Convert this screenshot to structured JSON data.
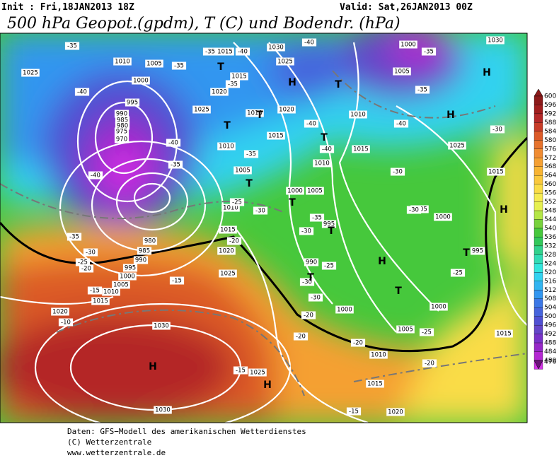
{
  "header": {
    "init": "Init : Fri,18JAN2013 18Z",
    "valid": "Valid: Sat,26JAN2013 00Z",
    "title": "500 hPa Geopot.(gpdm), T (C) und Bodendr. (hPa)"
  },
  "footer": {
    "line1": "Daten: GFS−Modell des amerikanischen Wetterdienstes",
    "line2": "(C) Wetterzentrale",
    "line3": "www.wetterzentrale.de"
  },
  "colorbar": [
    {
      "value": 600,
      "color": "#8b1a1a"
    },
    {
      "value": 596,
      "color": "#a01e1e"
    },
    {
      "value": 592,
      "color": "#b42828"
    },
    {
      "value": 588,
      "color": "#c83c28"
    },
    {
      "value": 584,
      "color": "#dc5a28"
    },
    {
      "value": 580,
      "color": "#e6732d"
    },
    {
      "value": 576,
      "color": "#f08c32"
    },
    {
      "value": 572,
      "color": "#f5a032"
    },
    {
      "value": 568,
      "color": "#f8b432"
    },
    {
      "value": 564,
      "color": "#fac83c"
    },
    {
      "value": 560,
      "color": "#fadc46"
    },
    {
      "value": 556,
      "color": "#f5eb50"
    },
    {
      "value": 552,
      "color": "#e6f050"
    },
    {
      "value": 548,
      "color": "#b4e646"
    },
    {
      "value": 544,
      "color": "#78d23c"
    },
    {
      "value": 540,
      "color": "#46c83c"
    },
    {
      "value": 536,
      "color": "#32c85a"
    },
    {
      "value": 532,
      "color": "#32d28c"
    },
    {
      "value": 528,
      "color": "#32dcb4"
    },
    {
      "value": 524,
      "color": "#32e6dc"
    },
    {
      "value": 520,
      "color": "#32d2f0"
    },
    {
      "value": 516,
      "color": "#32b4f0"
    },
    {
      "value": 512,
      "color": "#3296f0"
    },
    {
      "value": 508,
      "color": "#3c78e6"
    },
    {
      "value": 504,
      "color": "#4664dc"
    },
    {
      "value": 500,
      "color": "#5050d2"
    },
    {
      "value": 496,
      "color": "#6446c8"
    },
    {
      "value": 492,
      "color": "#7832c8"
    },
    {
      "value": 488,
      "color": "#9628c8"
    },
    {
      "value": 484,
      "color": "#b428d2"
    },
    {
      "value": 480,
      "color": "#d232e6"
    },
    {
      "value": 476,
      "color": "#6a1478"
    }
  ],
  "map_labels": {
    "isobars": [
      "1030",
      "1015",
      "1010",
      "1005",
      "1025",
      "1000",
      "995",
      "990",
      "985",
      "980",
      "975",
      "970",
      "1025",
      "1020",
      "1015",
      "1010",
      "1020",
      "1015",
      "1010",
      "1010",
      "1015",
      "1005",
      "1000",
      "1005",
      "1010",
      "1015",
      "1020",
      "1025",
      "995",
      "990",
      "1000",
      "980",
      "985",
      "990",
      "995",
      "1000",
      "1005",
      "1010",
      "1015",
      "1020",
      "1030",
      "1030",
      "1025",
      "1015",
      "1020",
      "1005",
      "1000",
      "995",
      "1000",
      "1005",
      "1010",
      "1015",
      "1015",
      "1025",
      "1025",
      "1000",
      "1005",
      "1030",
      "1010"
    ],
    "temperatures": [
      "-35",
      "-35",
      "-40",
      "-40",
      "-35",
      "-40",
      "-35",
      "-40",
      "-40",
      "-35",
      "-40",
      "-35",
      "-30",
      "-35",
      "-30",
      "-30",
      "-35",
      "-30",
      "-25",
      "-30",
      "-30",
      "-25",
      "-25",
      "-20",
      "-20",
      "-20",
      "-20",
      "-15",
      "-15",
      "-15",
      "-20",
      "-25",
      "-30",
      "-35",
      "-30",
      "-25",
      "-20",
      "-15",
      "-10",
      "-40",
      "-35",
      "-40"
    ],
    "markers": [
      "T",
      "H",
      "T",
      "T",
      "H",
      "H",
      "T",
      "T",
      "T",
      "T",
      "H",
      "T",
      "H",
      "T",
      "T",
      "H",
      "H",
      "T"
    ]
  }
}
